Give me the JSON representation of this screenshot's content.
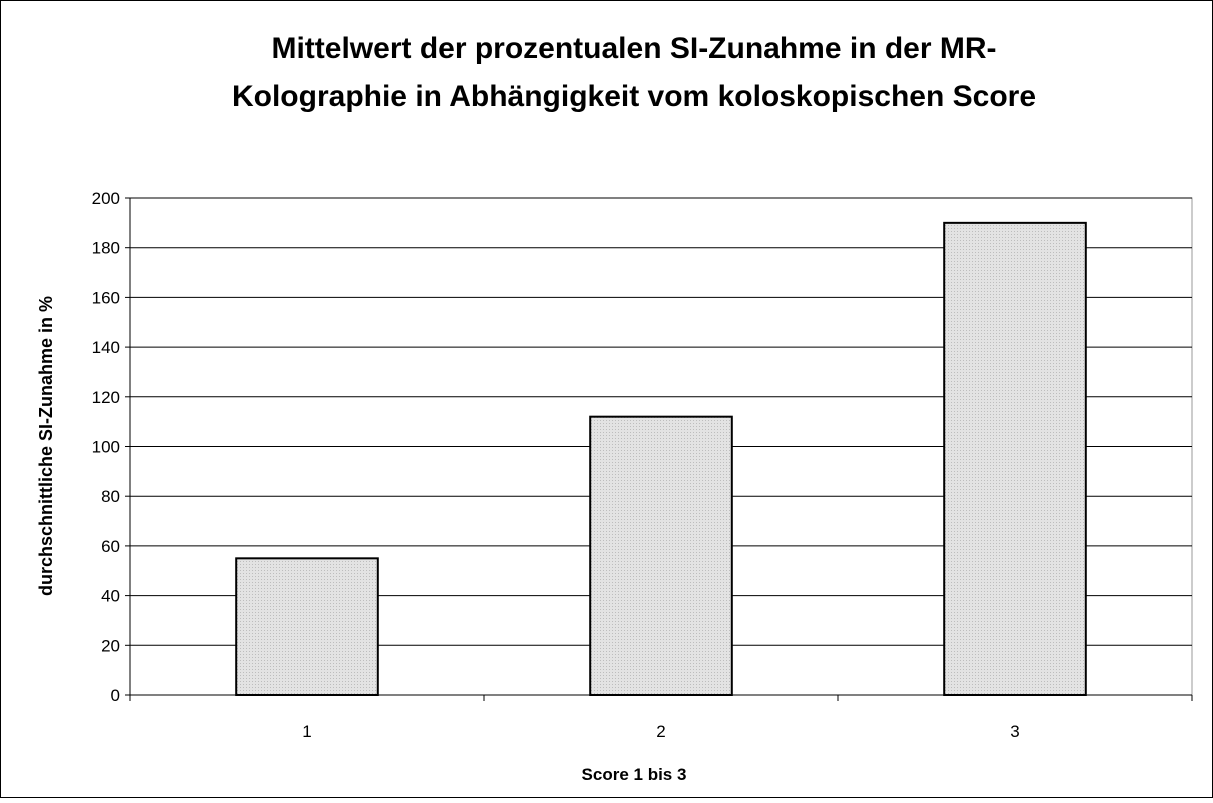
{
  "chart_data": {
    "type": "bar",
    "title": [
      "Mittelwert der prozentualen SI-Zunahme in der MR-",
      "Kolographie in Abhängigkeit vom koloskopischen Score"
    ],
    "x_label": "Score 1 bis 3",
    "y_label": "durchschnittliche SI-Zunahme in %",
    "categories": [
      "1",
      "2",
      "3"
    ],
    "values": [
      55,
      112,
      190
    ],
    "color": "#e3e3e3",
    "ylim": [
      0,
      200
    ],
    "yticks": [
      0,
      20,
      40,
      60,
      80,
      100,
      120,
      140,
      160,
      180,
      200
    ],
    "grid": true
  }
}
